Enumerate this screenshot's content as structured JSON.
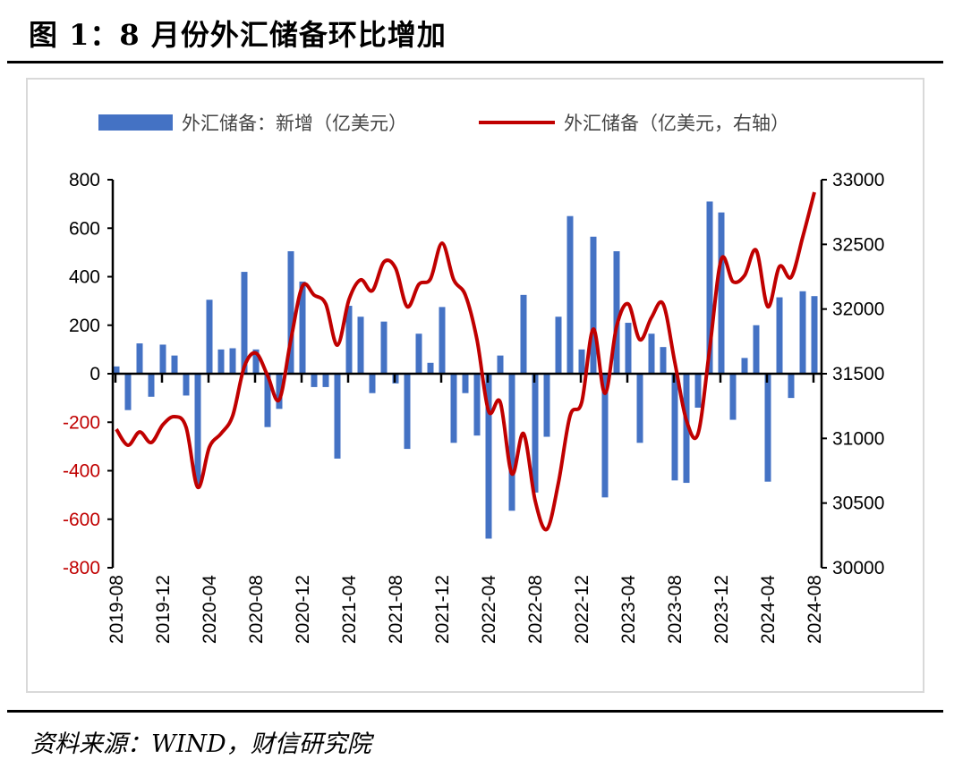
{
  "title": "图 1：8 月份外汇储备环比增加",
  "source": "资料来源：WIND，财信研究院",
  "colors": {
    "bar": "#4472c4",
    "line": "#c00000",
    "negative_tick": "#c00000"
  },
  "chart_data": {
    "type": "bar+line",
    "title": "图 1：8 月份外汇储备环比增加",
    "legend": [
      "外汇储备：新增（亿美元）",
      "外汇储备（亿美元，右轴）"
    ],
    "legend_placement": "top",
    "x_tick_labels": [
      "2019-08",
      "2019-12",
      "2020-04",
      "2020-08",
      "2020-12",
      "2021-04",
      "2021-08",
      "2021-12",
      "2022-04",
      "2022-08",
      "2022-12",
      "2023-04",
      "2023-08",
      "2023-12",
      "2024-04",
      "2024-08"
    ],
    "y_left": {
      "range": [
        -800,
        800
      ],
      "ticks": [
        "800",
        "600",
        "400",
        "200",
        "0",
        "-200",
        "-400",
        "-600",
        "-800"
      ]
    },
    "y_right": {
      "range": [
        30000,
        33000
      ],
      "ticks": [
        "33000",
        "32500",
        "32000",
        "31500",
        "31000",
        "30500",
        "30000"
      ]
    },
    "start_month": "2019-08",
    "series": [
      {
        "name": "外汇储备：新增（亿美元）",
        "type": "bar",
        "axis": "left",
        "values": [
          30,
          -150,
          125,
          -95,
          120,
          75,
          -90,
          -460,
          305,
          100,
          105,
          420,
          100,
          -220,
          -145,
          505,
          380,
          -55,
          -55,
          -350,
          280,
          235,
          -80,
          215,
          -40,
          -310,
          165,
          45,
          275,
          -285,
          -80,
          -255,
          -680,
          75,
          -565,
          325,
          -490,
          -260,
          235,
          650,
          100,
          565,
          -510,
          505,
          210,
          -285,
          165,
          110,
          -440,
          -450,
          -140,
          710,
          665,
          -190,
          65,
          200,
          -445,
          315,
          -100,
          340,
          320
        ]
      },
      {
        "name": "外汇储备（亿美元，右轴）",
        "type": "line",
        "axis": "right",
        "values": [
          31071,
          30947,
          31050,
          30968,
          31106,
          31168,
          31085,
          30622,
          30933,
          31037,
          31175,
          31555,
          31659,
          31486,
          31299,
          31763,
          32177,
          32108,
          32039,
          31721,
          32074,
          32226,
          32142,
          32364,
          32316,
          32018,
          32191,
          32233,
          32509,
          32226,
          32108,
          31763,
          31210,
          31279,
          30726,
          31037,
          30518,
          30297,
          30657,
          31175,
          31279,
          31845,
          31348,
          31866,
          32039,
          31763,
          31935,
          32039,
          31590,
          31140,
          31037,
          31694,
          32385,
          32212,
          32260,
          32454,
          32018,
          32329,
          32246,
          32558,
          32903
        ]
      }
    ]
  }
}
